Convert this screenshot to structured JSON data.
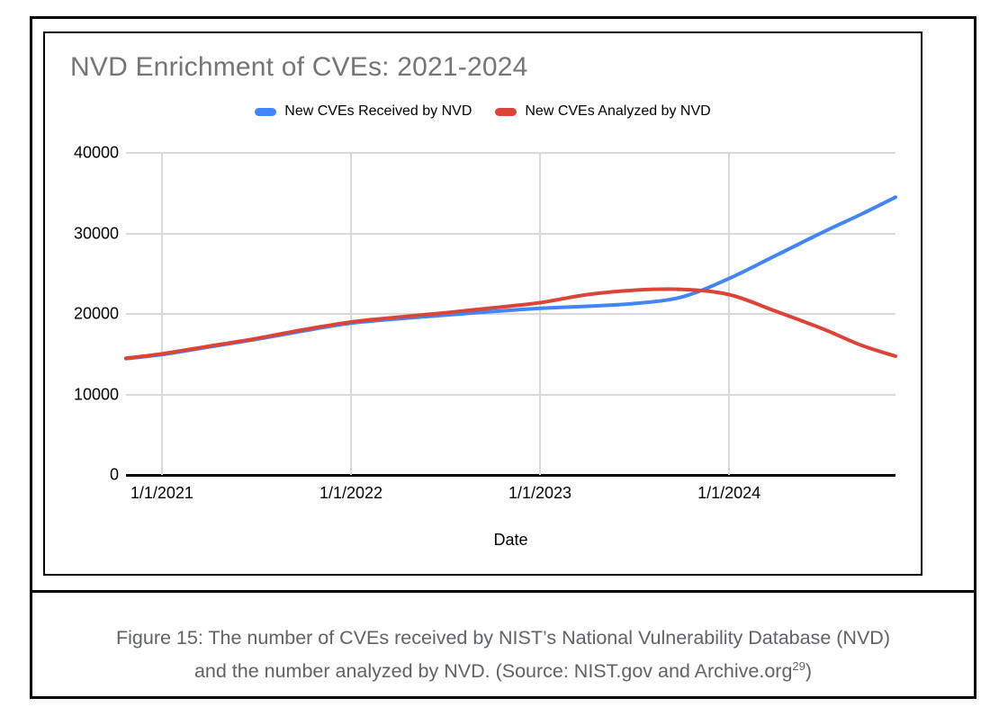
{
  "figure": {
    "caption_line1": "Figure 15: The number of CVEs received by NIST’s National Vulnerability Database (NVD)",
    "caption_line2_pre": "and the number analyzed by NVD. (Source: NIST.gov and Archive.org",
    "caption_superscript": "29",
    "caption_line2_post": ")"
  },
  "colors": {
    "received_line": "#4285F4",
    "analyzed_line": "#DB4437",
    "title_text": "#757575",
    "caption_text": "#5f6368",
    "gridline": "#d9d9d9",
    "axis": "#000000"
  },
  "chart_data": {
    "type": "line",
    "title": "NVD Enrichment of CVEs: 2021-2024",
    "xlabel": "Date",
    "ylabel": "",
    "grid": true,
    "legend_position": "top-center",
    "x_unit": "years since 1/1/2021",
    "xlim": [
      -0.19,
      3.88
    ],
    "ylim": [
      0,
      40000
    ],
    "x_ticks": [
      {
        "label": "1/1/2021",
        "x": 0
      },
      {
        "label": "1/1/2022",
        "x": 1
      },
      {
        "label": "1/1/2023",
        "x": 2
      },
      {
        "label": "1/1/2024",
        "x": 3
      }
    ],
    "y_ticks": [
      {
        "label": "0",
        "v": 0
      },
      {
        "label": "10000",
        "v": 10000
      },
      {
        "label": "20000",
        "v": 20000
      },
      {
        "label": "30000",
        "v": 30000
      },
      {
        "label": "40000",
        "v": 40000
      }
    ],
    "x": [
      -0.19,
      0,
      0.25,
      0.5,
      0.75,
      1.0,
      1.25,
      1.5,
      1.75,
      2.0,
      2.25,
      2.5,
      2.75,
      3.0,
      3.25,
      3.5,
      3.7,
      3.88
    ],
    "series": [
      {
        "name": "New CVEs Received by NVD",
        "color": "#4285F4",
        "values": [
          14450,
          14950,
          15900,
          16850,
          17900,
          18850,
          19400,
          19850,
          20300,
          20700,
          20950,
          21300,
          22100,
          24400,
          27300,
          30200,
          32400,
          34500
        ]
      },
      {
        "name": "New CVEs Analyzed by NVD",
        "color": "#DB4437",
        "values": [
          14500,
          15050,
          16000,
          16950,
          18050,
          19000,
          19600,
          20150,
          20750,
          21400,
          22400,
          22950,
          23050,
          22400,
          20300,
          18100,
          16100,
          14750
        ]
      }
    ]
  }
}
